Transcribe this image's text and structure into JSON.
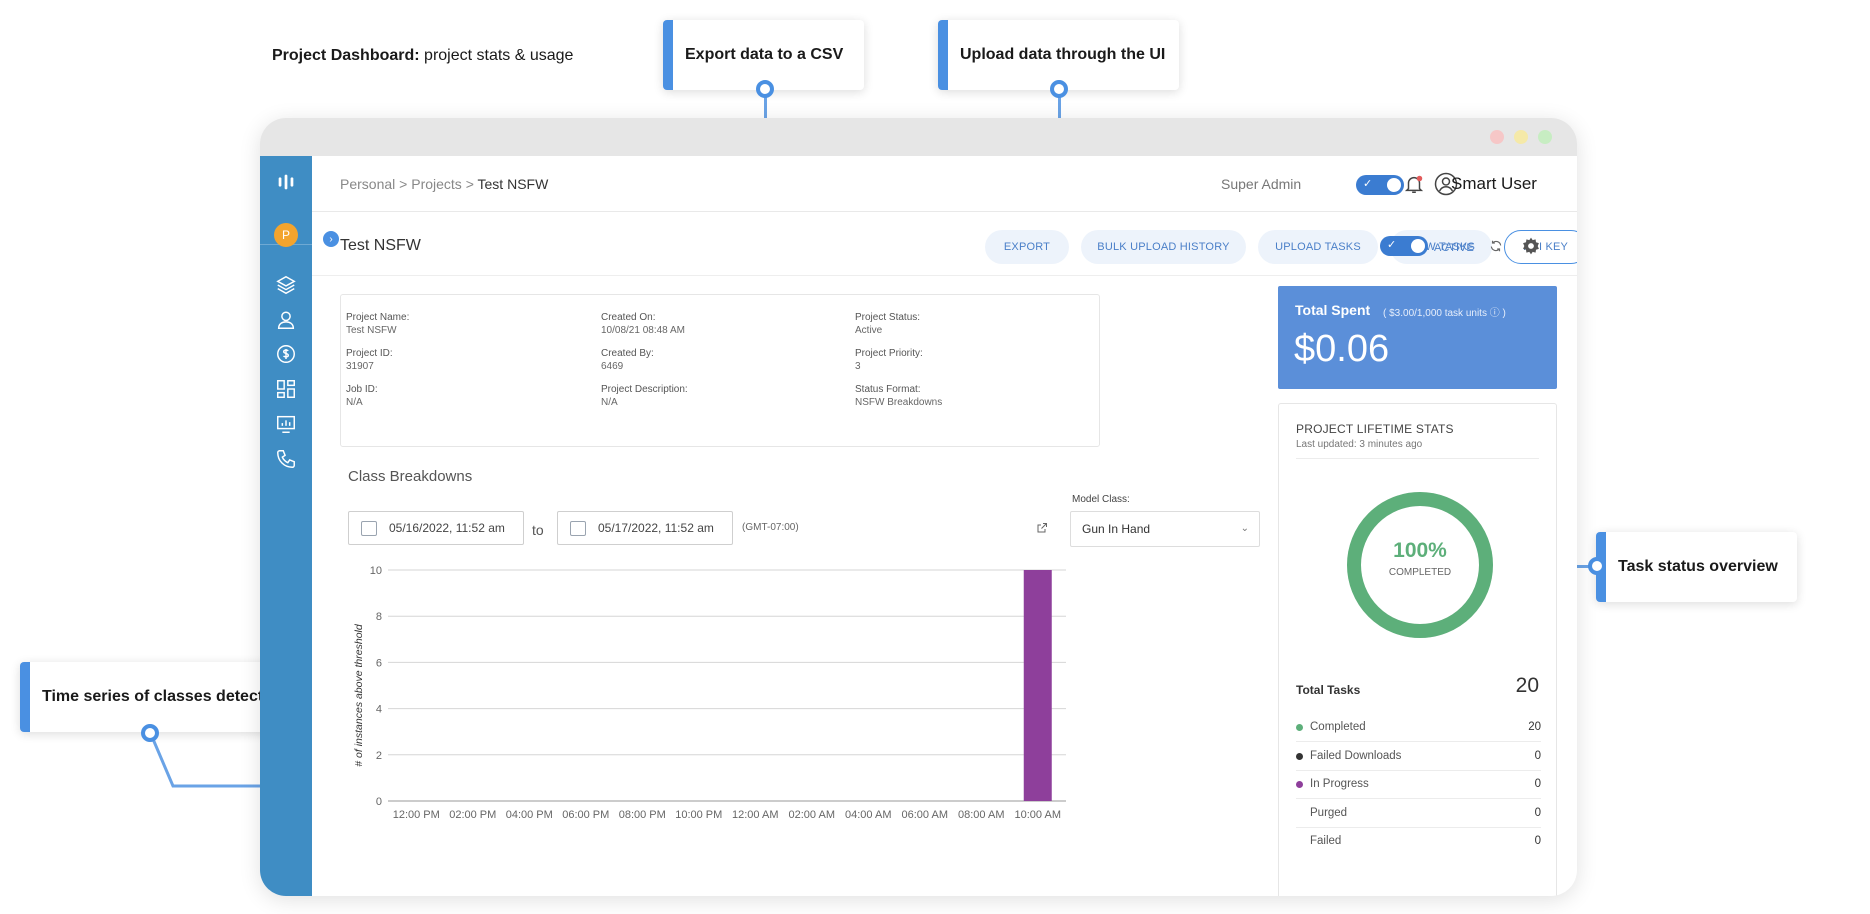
{
  "page": {
    "title_bold": "Project Dashboard:",
    "title_rest": " project stats & usage"
  },
  "callouts": {
    "export": "Export data to a CSV",
    "upload": "Upload data through the UI",
    "task_status": "Task status overview",
    "time_series": "Time series of classes detected"
  },
  "breadcrumb": {
    "personal": "Personal",
    "sep1": " > ",
    "projects": "Projects",
    "sep2": " > ",
    "current": "Test NSFW"
  },
  "topbar": {
    "super_admin": "Super Admin",
    "user_name": "Smart User"
  },
  "sidebar": {
    "avatar_letter": "P"
  },
  "project_bar": {
    "title": "Test NSFW",
    "buttons": {
      "export": "EXPORT",
      "bulk": "BULK UPLOAD HISTORY",
      "upload": "UPLOAD TASKS",
      "view": "VIEW TASKS",
      "api": "API KEY"
    },
    "active_label": "ACTIVE"
  },
  "info": {
    "name_label": "Project Name:",
    "name": "Test NSFW",
    "created_on_label": "Created On:",
    "created_on": "10/08/21 08:48 AM",
    "status_label": "Project Status:",
    "status": "Active",
    "id_label": "Project ID:",
    "id": "31907",
    "created_by_label": "Created By:",
    "created_by": "6469",
    "priority_label": "Project Priority:",
    "priority": "3",
    "job_label": "Job ID:",
    "job": "N/A",
    "desc_label": "Project Description:",
    "desc": "N/A",
    "format_label": "Status Format:",
    "format": "NSFW Breakdowns"
  },
  "class_breakdowns": {
    "title": "Class Breakdowns",
    "from": "05/16/2022, 11:52 am",
    "to_label": "to",
    "to": "05/17/2022, 11:52 am",
    "timezone": "(GMT-07:00)",
    "model_label": "Model Class:",
    "model_value": "Gun In Hand"
  },
  "chart_data": {
    "type": "bar",
    "categories": [
      "12:00 PM",
      "02:00 PM",
      "04:00 PM",
      "06:00 PM",
      "08:00 PM",
      "10:00 PM",
      "12:00 AM",
      "02:00 AM",
      "04:00 AM",
      "06:00 AM",
      "08:00 AM",
      "10:00 AM"
    ],
    "series": [
      {
        "values": [
          0,
          0,
          0,
          0,
          0,
          0,
          0,
          0,
          0,
          0,
          0,
          10
        ],
        "color": "#8e3f9b"
      }
    ],
    "ylabel": "# of instances above threshold",
    "xlabel": "",
    "ylim": [
      0,
      10
    ],
    "yticks": [
      0,
      2,
      4,
      6,
      8,
      10
    ],
    "grid": true
  },
  "spent": {
    "title": "Total Spent",
    "unit": "( $3.00/1,000 task units ⓘ )",
    "value": "$0.06"
  },
  "lifetime": {
    "title": "PROJECT LIFETIME STATS",
    "updated": "Last updated: 3 minutes ago",
    "percent": "100%",
    "percent_label": "COMPLETED",
    "percent_value": 1.0,
    "total_label": "Total Tasks",
    "total": "20",
    "rows": [
      {
        "label": "Completed",
        "value": "20",
        "color": "#5daf7a"
      },
      {
        "label": "Failed Downloads",
        "value": "0",
        "color": "#333333"
      },
      {
        "label": "In Progress",
        "value": "0",
        "color": "#8e3f9b"
      },
      {
        "label": "Purged",
        "value": "0",
        "color": ""
      },
      {
        "label": "Failed",
        "value": "0",
        "color": ""
      }
    ]
  },
  "colors": {
    "accent": "#4a90e2",
    "sidebar": "#3f8dc4",
    "spent_bg": "#5b8fd9",
    "ring": "#5daf7a"
  }
}
